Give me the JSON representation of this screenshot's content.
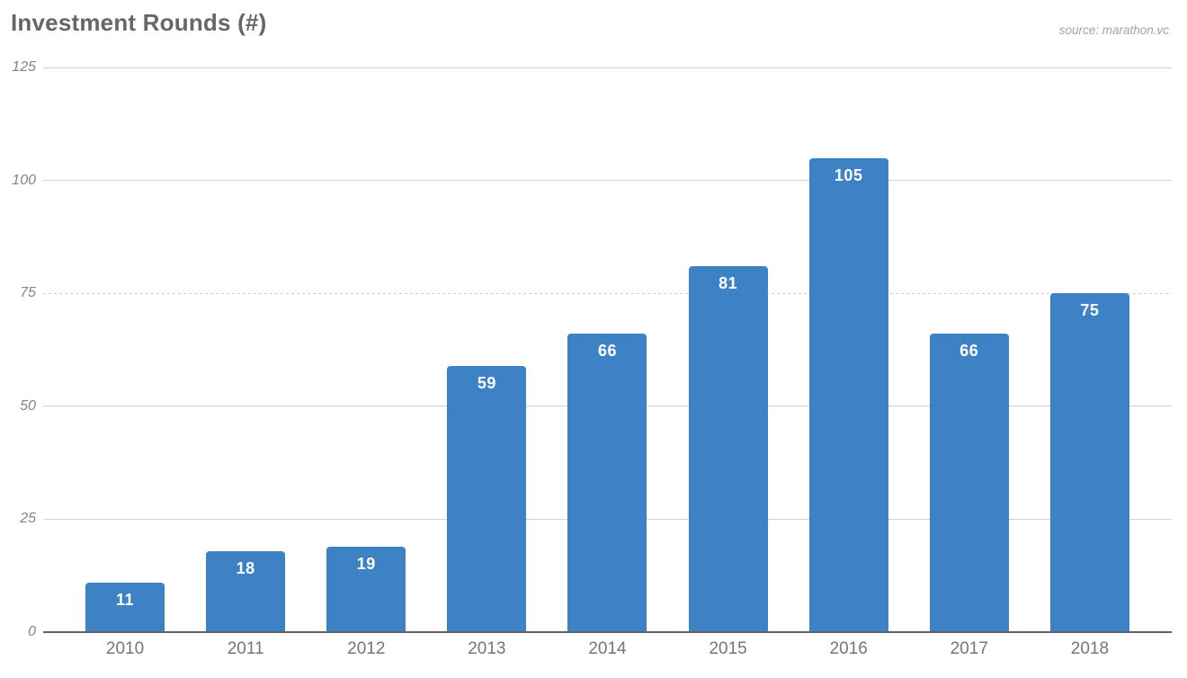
{
  "header": {
    "title": "Investment Rounds (#)",
    "source": "source: marathon.vc"
  },
  "colors": {
    "bar": "#3d82c4",
    "title": "#666666",
    "source": "#a3a3a3",
    "gridline": "#d0d0d0",
    "axis_line": "#616161",
    "y_tick": "#848484",
    "x_tick": "#757575",
    "bar_value_label": "#ffffff"
  },
  "chart_data": {
    "type": "bar",
    "title": "Investment Rounds (#)",
    "source": "source: marathon.vc",
    "categories": [
      "2010",
      "2011",
      "2012",
      "2013",
      "2014",
      "2015",
      "2016",
      "2017",
      "2018"
    ],
    "values": [
      11,
      18,
      19,
      59,
      66,
      81,
      105,
      66,
      75
    ],
    "xlabel": "",
    "ylabel": "",
    "ylim": [
      0,
      125
    ],
    "yticks": [
      0,
      25,
      50,
      75,
      100,
      125
    ],
    "grid": true,
    "dashed_gridline_value": 75,
    "legend": "none",
    "bar_labels_shown": true
  }
}
